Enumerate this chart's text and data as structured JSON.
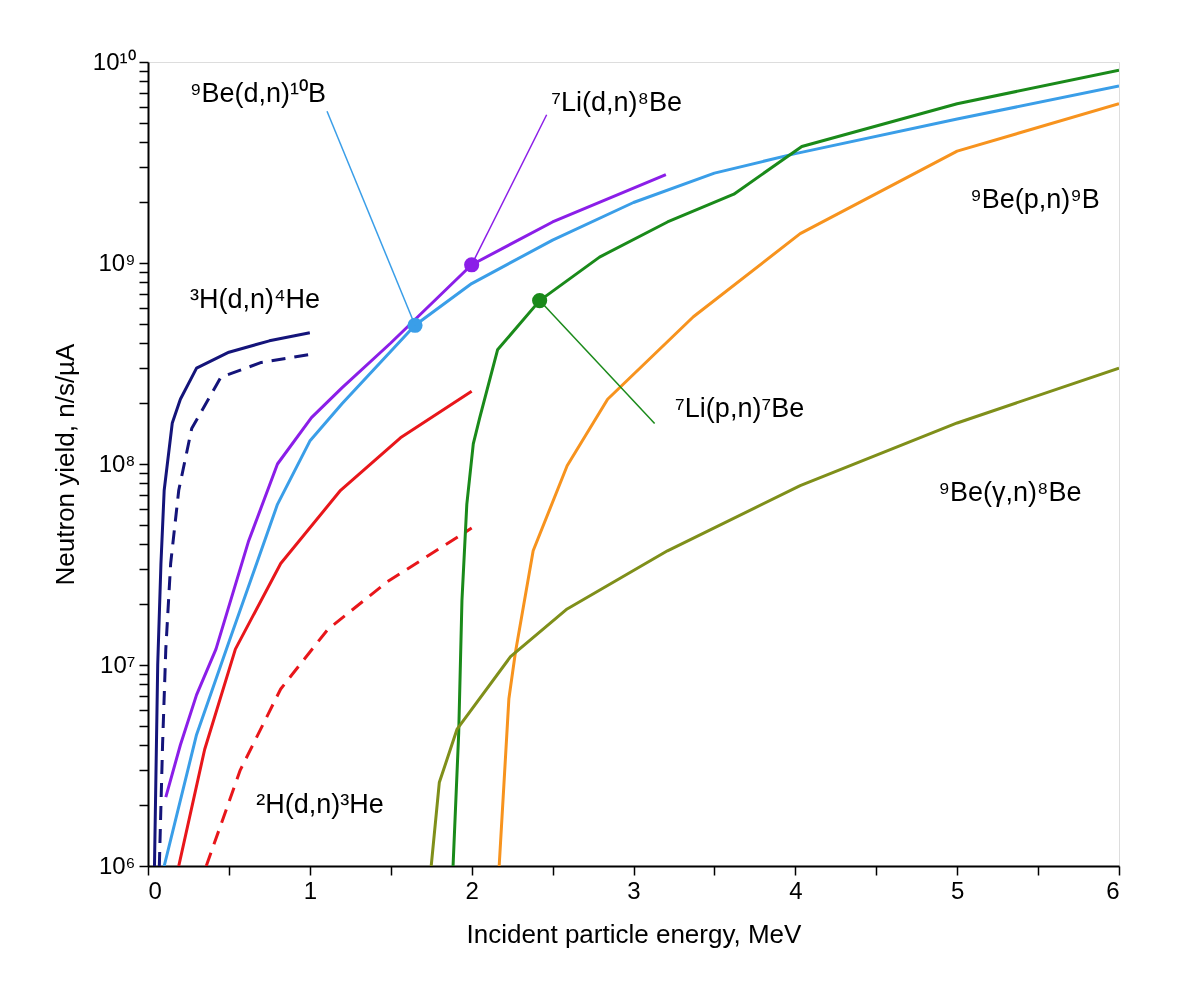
{
  "chart_data": {
    "type": "line",
    "xlabel": "Incident particle energy, MeV",
    "ylabel": "Neutron yield, n/s/µA",
    "log": "y",
    "xlim": [
      0,
      6
    ],
    "xticks": [
      0,
      {
        "value": 0.5,
        "label": null
      },
      1,
      {
        "value": 1.5,
        "label": null
      },
      2,
      {
        "value": 2.5,
        "label": null
      },
      3,
      {
        "value": 3.5,
        "label": null
      },
      4,
      {
        "value": 4.5,
        "label": null
      },
      5,
      {
        "value": 5.5,
        "label": null
      },
      6
    ],
    "ylim": [
      1000000,
      10000000000
    ],
    "yticks": [
      {
        "value": 1000000,
        "label": "10⁶"
      },
      {
        "value": 2000000,
        "label": null
      },
      {
        "value": 3000000,
        "label": null
      },
      {
        "value": 4000000,
        "label": null
      },
      {
        "value": 5000000,
        "label": null
      },
      {
        "value": 6000000,
        "label": null
      },
      {
        "value": 7000000,
        "label": null
      },
      {
        "value": 8000000,
        "label": null
      },
      {
        "value": 9000000,
        "label": null
      },
      {
        "value": 10000000,
        "label": "10⁷"
      },
      {
        "value": 20000000,
        "label": null
      },
      {
        "value": 30000000,
        "label": null
      },
      {
        "value": 40000000,
        "label": null
      },
      {
        "value": 50000000,
        "label": null
      },
      {
        "value": 60000000,
        "label": null
      },
      {
        "value": 70000000,
        "label": null
      },
      {
        "value": 80000000,
        "label": null
      },
      {
        "value": 90000000,
        "label": null
      },
      {
        "value": 100000000,
        "label": "10⁸"
      },
      {
        "value": 200000000,
        "label": null
      },
      {
        "value": 300000000,
        "label": null
      },
      {
        "value": 400000000,
        "label": null
      },
      {
        "value": 500000000,
        "label": null
      },
      {
        "value": 600000000,
        "label": null
      },
      {
        "value": 700000000,
        "label": null
      },
      {
        "value": 800000000,
        "label": null
      },
      {
        "value": 900000000,
        "label": null
      },
      {
        "value": 1000000000,
        "label": "10⁹"
      },
      {
        "value": 2000000000,
        "label": null
      },
      {
        "value": 3000000000,
        "label": null
      },
      {
        "value": 4000000000,
        "label": null
      },
      {
        "value": 5000000000,
        "label": null
      },
      {
        "value": 6000000000,
        "label": null
      },
      {
        "value": 7000000000,
        "label": null
      },
      {
        "value": 8000000000,
        "label": null
      },
      {
        "value": 9000000000,
        "label": null
      },
      {
        "value": 10000000000,
        "label": "10¹⁰"
      }
    ],
    "grid": false,
    "series": [
      {
        "color": "#14147a",
        "line_style": "solid",
        "x": [
          0.04,
          0.06,
          0.08,
          0.1,
          0.15,
          0.2,
          0.3,
          0.5,
          0.75,
          1.0
        ],
        "values": [
          1000000,
          10000000,
          32000000,
          74000000,
          160000000,
          210000000,
          300000000,
          360000000,
          410000000,
          450000000
        ]
      },
      {
        "color": "#14147a",
        "line_style": "dashed",
        "x": [
          0.07,
          0.09,
          0.11,
          0.14,
          0.19,
          0.27,
          0.45,
          0.7,
          0.99
        ],
        "values": [
          1000000,
          4000000,
          12000000,
          32000000,
          74000000,
          150000000,
          270000000,
          320000000,
          350000000
        ]
      },
      {
        "color": "#8b1ee8",
        "line_style": "solid",
        "x": [
          0.11,
          0.2,
          0.3,
          0.42,
          0.62,
          0.8,
          1.01,
          1.2,
          1.5,
          2.0,
          2.5,
          3.2
        ],
        "values": [
          2200000,
          4000000,
          7100000,
          12000000,
          41000000,
          100000000,
          170000000,
          240000000,
          400000000,
          980000000,
          1600000000,
          2750000000
        ]
      },
      {
        "color": "#3a9ee8",
        "line_style": "solid",
        "x": [
          0.1,
          0.3,
          0.5,
          0.8,
          1.0,
          1.2,
          1.65,
          2.0,
          2.5,
          3.0,
          3.5,
          4.0,
          5.0,
          6.0
        ],
        "values": [
          1000000,
          4500000,
          13000000,
          63000000,
          130000000,
          200000000,
          490000000,
          790000000,
          1300000000,
          2000000000,
          2800000000,
          3500000000,
          5200000000,
          7600000000
        ]
      },
      {
        "color": "#e8161a",
        "line_style": "solid",
        "x": [
          0.19,
          0.35,
          0.54,
          0.82,
          1.19,
          1.56,
          2.0
        ],
        "values": [
          1000000,
          3800000,
          12000000,
          32000000,
          74000000,
          135000000,
          230000000
        ]
      },
      {
        "color": "#e8161a",
        "line_style": "dashed",
        "x": [
          0.36,
          0.57,
          0.82,
          1.11,
          1.48,
          2.0
        ],
        "values": [
          1000000,
          3000000,
          7600000,
          15000000,
          26000000,
          48000000
        ]
      },
      {
        "color": "#1a8a1a",
        "line_style": "solid",
        "x": [
          1.885,
          1.92,
          1.94,
          1.97,
          2.01,
          2.05,
          2.16,
          2.42,
          2.79,
          3.21,
          3.62,
          4.04,
          5.0,
          6.0
        ],
        "values": [
          1000000,
          4600000,
          21000000,
          63000000,
          126000000,
          170000000,
          370000000,
          650000000,
          1070000000,
          1600000000,
          2200000000,
          3800000000,
          6200000000,
          9100000000
        ]
      },
      {
        "color": "#f7931e",
        "line_style": "solid",
        "x": [
          2.17,
          2.23,
          2.27,
          2.38,
          2.59,
          2.84,
          3.37,
          4.03,
          5.0,
          6.0
        ],
        "values": [
          1000000,
          6800000,
          11500000,
          37000000,
          98000000,
          210000000,
          540000000,
          1400000000,
          3600000000,
          6200000000
        ]
      },
      {
        "color": "#7f8f1a",
        "line_style": "solid",
        "x": [
          1.75,
          1.8,
          1.91,
          2.24,
          2.59,
          3.21,
          4.03,
          5.0,
          6.0
        ],
        "values": [
          1000000,
          2600000,
          4800000,
          11000000,
          19000000,
          37000000,
          78000000,
          160000000,
          300000000
        ]
      },
      {
        "type": "scatter",
        "marker": "circle",
        "x": [
          1.65,
          2.0,
          2.42
        ],
        "values": [
          490000000,
          980000000,
          650000000
        ],
        "colors": [
          "#3a9ee8",
          "#8b1ee8",
          "#1a8a1a"
        ]
      }
    ],
    "annotations": [
      {
        "text": "⁹Be(d,n)¹⁰B",
        "x": 1.65,
        "y": 490000000
      },
      {
        "text": "⁷Li(d,n)⁸Be",
        "x": 2.0,
        "y": 980000000
      },
      {
        "text": "⁷Li(p,n)⁷Be",
        "x": 2.42,
        "y": 650000000
      },
      "³H(d,n)⁴He",
      "²H(d,n)³He",
      "⁹Be(p,n)⁹B",
      "⁹Be(γ,n)⁸Be"
    ]
  }
}
